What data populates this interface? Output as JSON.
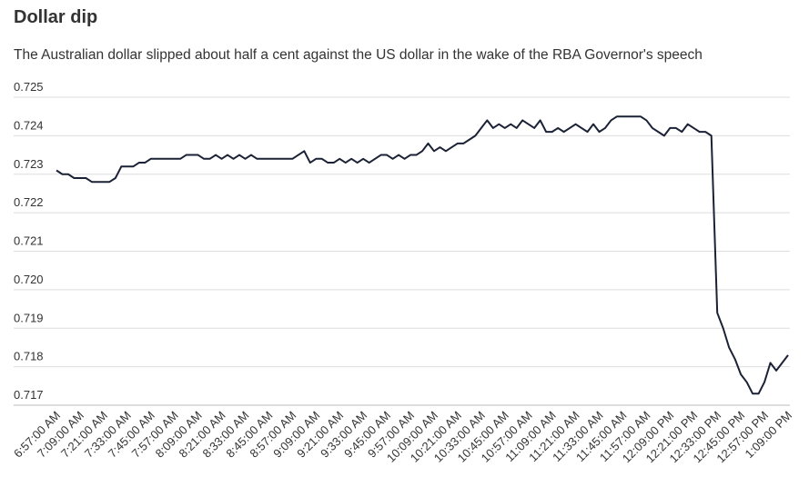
{
  "chart_data": {
    "type": "line",
    "title": "Dollar dip",
    "subtitle": "The Australian dollar slipped about half a cent against the US dollar in the wake of the RBA Governor's speech",
    "categories": [
      "6:57:00 AM",
      null,
      null,
      null,
      "7:09:00 AM",
      null,
      null,
      null,
      "7:21:00 AM",
      null,
      null,
      null,
      "7:33:00 AM",
      null,
      null,
      null,
      "7:45:00 AM",
      null,
      null,
      null,
      "7:57:00 AM",
      null,
      null,
      null,
      "8:09:00 AM",
      null,
      null,
      null,
      "8:21:00 AM",
      null,
      null,
      null,
      "8:33:00 AM",
      null,
      null,
      null,
      "8:45:00 AM",
      null,
      null,
      null,
      "8:57:00 AM",
      null,
      null,
      null,
      "9:09:00 AM",
      null,
      null,
      null,
      "9:21:00 AM",
      null,
      null,
      null,
      "9:33:00 AM",
      null,
      null,
      null,
      "9:45:00 AM",
      null,
      null,
      null,
      "9:57:00 AM",
      null,
      null,
      null,
      "10:09:00 AM",
      null,
      null,
      null,
      "10:21:00 AM",
      null,
      null,
      null,
      "10:33:00 AM",
      null,
      null,
      null,
      "10:45:00 AM",
      null,
      null,
      null,
      "10:57:00 AM",
      null,
      null,
      null,
      "11:09:00 AM",
      null,
      null,
      null,
      "11:21:00 AM",
      null,
      null,
      null,
      "11:33:00 AM",
      null,
      null,
      null,
      "11:45:00 AM",
      null,
      null,
      null,
      "11:57:00 AM",
      null,
      null,
      null,
      "12:09:00 PM",
      null,
      null,
      null,
      "12:21:00 PM",
      null,
      null,
      null,
      "12:33:00 PM",
      null,
      null,
      null,
      "12:45:00 PM",
      null,
      null,
      null,
      "12:57:00 PM",
      null,
      null,
      null,
      "1:09:00 PM"
    ],
    "series": [
      {
        "color": "#1b2236",
        "values": [
          0.7231,
          0.723,
          0.723,
          0.7229,
          0.7229,
          0.7229,
          0.7228,
          0.7228,
          0.7228,
          0.7228,
          0.7229,
          0.7232,
          0.7232,
          0.7232,
          0.7233,
          0.7233,
          0.7234,
          0.7234,
          0.7234,
          0.7234,
          0.7234,
          0.7234,
          0.7235,
          0.7235,
          0.7235,
          0.7234,
          0.7234,
          0.7235,
          0.7234,
          0.7235,
          0.7234,
          0.7235,
          0.7234,
          0.7235,
          0.7234,
          0.7234,
          0.7234,
          0.7234,
          0.7234,
          0.7234,
          0.7234,
          0.7235,
          0.7236,
          0.7233,
          0.7234,
          0.7234,
          0.7233,
          0.7233,
          0.7234,
          0.7233,
          0.7234,
          0.7233,
          0.7234,
          0.7233,
          0.7234,
          0.7235,
          0.7235,
          0.7234,
          0.7235,
          0.7234,
          0.7235,
          0.7235,
          0.7236,
          0.7238,
          0.7236,
          0.7237,
          0.7236,
          0.7237,
          0.7238,
          0.7238,
          0.7239,
          0.724,
          0.7242,
          0.7244,
          0.7242,
          0.7243,
          0.7242,
          0.7243,
          0.7242,
          0.7244,
          0.7243,
          0.7242,
          0.7244,
          0.7241,
          0.7241,
          0.7242,
          0.7241,
          0.7242,
          0.7243,
          0.7242,
          0.7241,
          0.7243,
          0.7241,
          0.7242,
          0.7244,
          0.7245,
          0.7245,
          0.7245,
          0.7245,
          0.7245,
          0.7244,
          0.7242,
          0.7241,
          0.724,
          0.7242,
          0.7242,
          0.7241,
          0.7243,
          0.7242,
          0.7241,
          0.7241,
          0.724,
          0.7194,
          0.719,
          0.7185,
          0.7182,
          0.7178,
          0.7176,
          0.7173,
          0.7173,
          0.7176,
          0.7181,
          0.7179,
          0.7181,
          0.7183
        ]
      }
    ],
    "ylim": [
      0.717,
      0.725
    ],
    "yticks": [
      0.717,
      0.718,
      0.719,
      {
        "value": 0.72,
        "label": "0.720"
      },
      0.721,
      0.722,
      0.723,
      0.724,
      0.725
    ],
    "grid": true
  }
}
